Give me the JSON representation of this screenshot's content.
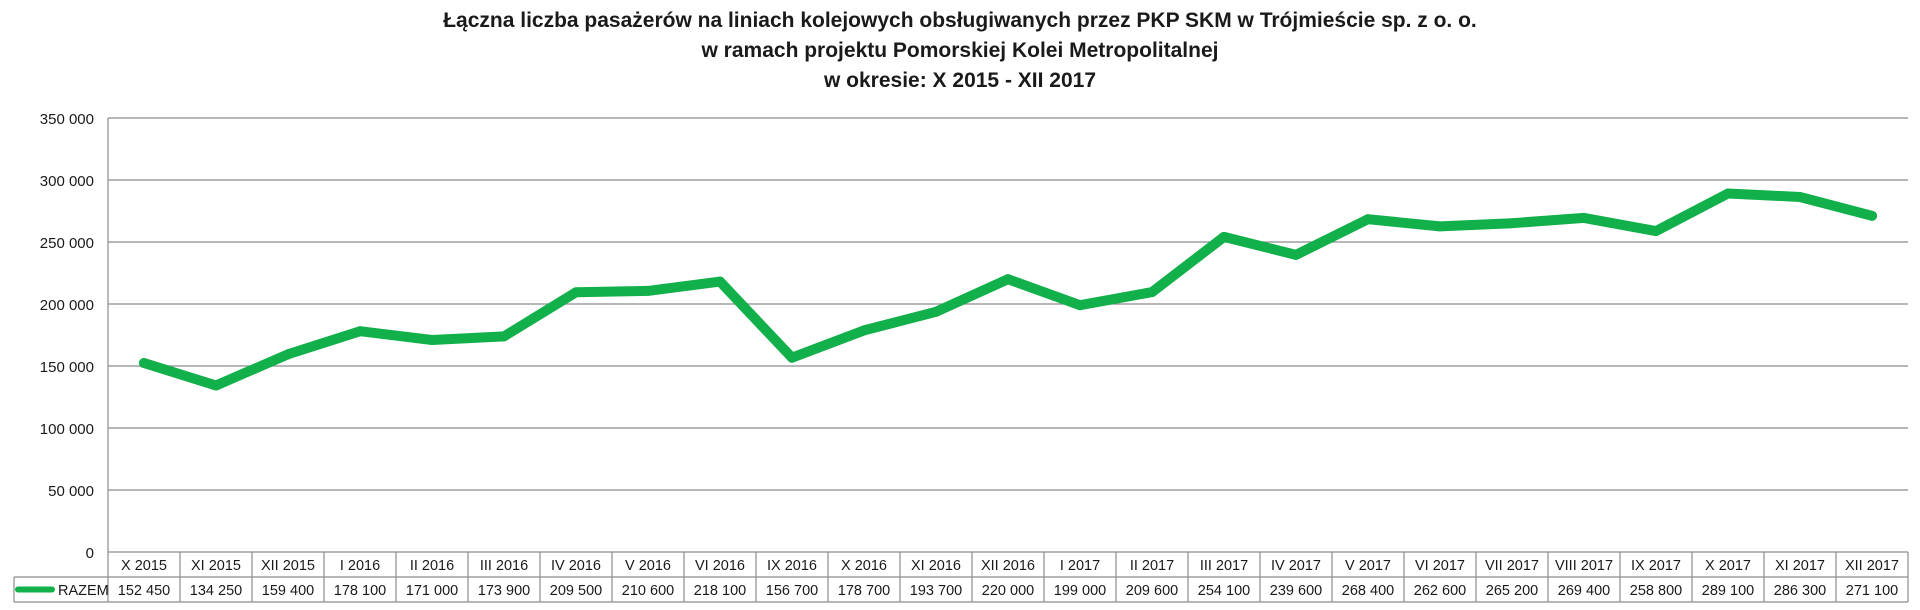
{
  "chart_data": {
    "type": "line",
    "title_lines": [
      "Łączna liczba pasażerów na liniach kolejowych obsługiwanych przez PKP SKM w Trójmieście sp. z o. o.",
      "w ramach projektu Pomorskiej Kolei Metropolitalnej",
      "w okresie: X 2015 - XII 2017"
    ],
    "categories": [
      "X 2015",
      "XI 2015",
      "XII 2015",
      "I 2016",
      "II 2016",
      "III 2016",
      "IV 2016",
      "V 2016",
      "VI 2016",
      "IX 2016",
      "X 2016",
      "XI 2016",
      "XII 2016",
      "I 2017",
      "II 2017",
      "III 2017",
      "IV 2017",
      "V 2017",
      "VI 2017",
      "VII 2017",
      "VIII 2017",
      "IX 2017",
      "X 2017",
      "XI 2017",
      "XII 2017"
    ],
    "series": [
      {
        "name": "RAZEM",
        "color": "#12b04b",
        "values": [
          152450,
          134250,
          159400,
          178100,
          171000,
          173900,
          209500,
          210600,
          218100,
          156700,
          178700,
          193700,
          220000,
          199000,
          209600,
          254100,
          239600,
          268400,
          262600,
          265200,
          269400,
          258800,
          289100,
          286300,
          271100
        ],
        "value_labels": [
          "152 450",
          "134 250",
          "159 400",
          "178 100",
          "171 000",
          "173 900",
          "209 500",
          "210 600",
          "218 100",
          "156 700",
          "178 700",
          "193 700",
          "220 000",
          "199 000",
          "209 600",
          "254 100",
          "239 600",
          "268 400",
          "262 600",
          "265 200",
          "269 400",
          "258 800",
          "289 100",
          "286 300",
          "271 100"
        ]
      }
    ],
    "y_ticks": [
      0,
      50000,
      100000,
      150000,
      200000,
      250000,
      300000,
      350000
    ],
    "y_tick_labels": [
      "0",
      "50 000",
      "100 000",
      "150 000",
      "200 000",
      "250 000",
      "300 000",
      "350 000"
    ],
    "ylim": [
      0,
      350000
    ],
    "grid": true,
    "legend": "data-table-below",
    "gridline_color": "#8c8c8c",
    "text_color": "#1a1a1a"
  }
}
